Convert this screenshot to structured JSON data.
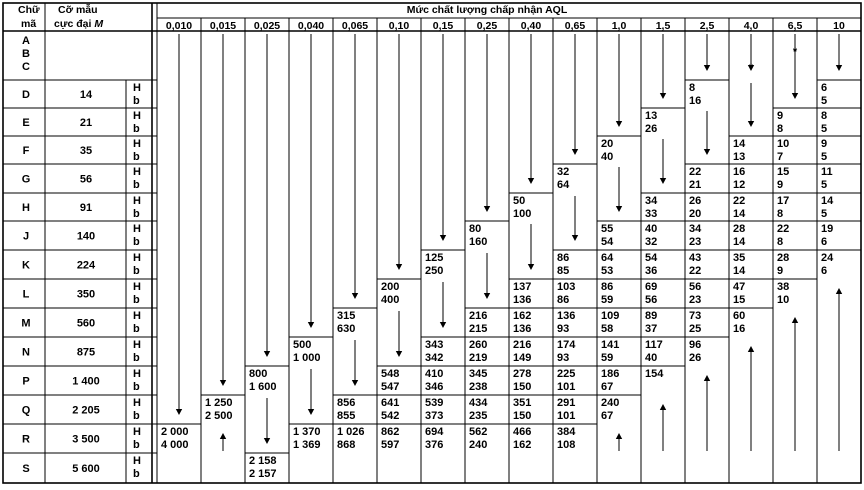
{
  "header": {
    "code_label_1": "Chữ",
    "code_label_2": "mã",
    "size_label_1": "Cỡ mẫu",
    "size_label_2": "cực đại",
    "size_label_var": "M",
    "aql_title": "Mức chất lượng chấp nhận AQL"
  },
  "aql_levels": [
    "0,010",
    "0,015",
    "0,025",
    "0,040",
    "0,065",
    "0,10",
    "0,15",
    "0,25",
    "0,40",
    "0,65",
    "1,0",
    "1,5",
    "2,5",
    "4,0",
    "6,5",
    "10"
  ],
  "row_H": "H",
  "row_b": "b",
  "rows": [
    {
      "codes": [
        "A",
        "B",
        "C"
      ],
      "size": ""
    },
    {
      "codes": [
        "D"
      ],
      "size": "14"
    },
    {
      "codes": [
        "E"
      ],
      "size": "21"
    },
    {
      "codes": [
        "F"
      ],
      "size": "35"
    },
    {
      "codes": [
        "G"
      ],
      "size": "56"
    },
    {
      "codes": [
        "H"
      ],
      "size": "91"
    },
    {
      "codes": [
        "J"
      ],
      "size": "140"
    },
    {
      "codes": [
        "K"
      ],
      "size": "224"
    },
    {
      "codes": [
        "L"
      ],
      "size": "350"
    },
    {
      "codes": [
        "M"
      ],
      "size": "560"
    },
    {
      "codes": [
        "N"
      ],
      "size": "875"
    },
    {
      "codes": [
        "P"
      ],
      "size": "1 400"
    },
    {
      "codes": [
        "Q"
      ],
      "size": "2 205"
    },
    {
      "codes": [
        "R"
      ],
      "size": "3 500"
    },
    {
      "codes": [
        "S"
      ],
      "size": "5 600"
    }
  ],
  "cells": [
    {
      "r": 13,
      "c": 0,
      "H": "2 000",
      "b": "4 000"
    },
    {
      "r": 12,
      "c": 1,
      "H": "1 250",
      "b": "2 500"
    },
    {
      "r": 11,
      "c": 2,
      "H": "800",
      "b": "1 600"
    },
    {
      "r": 14,
      "c": 2,
      "H": "2 158",
      "b": "2 157"
    },
    {
      "r": 10,
      "c": 3,
      "H": "500",
      "b": "1 000"
    },
    {
      "r": 13,
      "c": 3,
      "H": "1 370",
      "b": "1 369"
    },
    {
      "r": 9,
      "c": 4,
      "H": "315",
      "b": "630"
    },
    {
      "r": 12,
      "c": 4,
      "H": "856",
      "b": "855"
    },
    {
      "r": 13,
      "c": 4,
      "H": "1 026",
      "b": "868"
    },
    {
      "r": 8,
      "c": 5,
      "H": "200",
      "b": "400"
    },
    {
      "r": 11,
      "c": 5,
      "H": "548",
      "b": "547"
    },
    {
      "r": 12,
      "c": 5,
      "H": "641",
      "b": "542"
    },
    {
      "r": 13,
      "c": 5,
      "H": "862",
      "b": "597"
    },
    {
      "r": 7,
      "c": 6,
      "H": "125",
      "b": "250"
    },
    {
      "r": 10,
      "c": 6,
      "H": "343",
      "b": "342"
    },
    {
      "r": 11,
      "c": 6,
      "H": "410",
      "b": "346"
    },
    {
      "r": 12,
      "c": 6,
      "H": "539",
      "b": "373"
    },
    {
      "r": 13,
      "c": 6,
      "H": "694",
      "b": "376"
    },
    {
      "r": 6,
      "c": 7,
      "H": "80",
      "b": "160"
    },
    {
      "r": 9,
      "c": 7,
      "H": "216",
      "b": "215"
    },
    {
      "r": 10,
      "c": 7,
      "H": "260",
      "b": "219"
    },
    {
      "r": 11,
      "c": 7,
      "H": "345",
      "b": "238"
    },
    {
      "r": 12,
      "c": 7,
      "H": "434",
      "b": "235"
    },
    {
      "r": 13,
      "c": 7,
      "H": "562",
      "b": "240"
    },
    {
      "r": 5,
      "c": 8,
      "H": "50",
      "b": "100"
    },
    {
      "r": 8,
      "c": 8,
      "H": "137",
      "b": "136"
    },
    {
      "r": 9,
      "c": 8,
      "H": "162",
      "b": "136"
    },
    {
      "r": 10,
      "c": 8,
      "H": "216",
      "b": "149"
    },
    {
      "r": 11,
      "c": 8,
      "H": "278",
      "b": "150"
    },
    {
      "r": 12,
      "c": 8,
      "H": "351",
      "b": "150"
    },
    {
      "r": 13,
      "c": 8,
      "H": "466",
      "b": "162"
    },
    {
      "r": 4,
      "c": 9,
      "H": "32",
      "b": "64"
    },
    {
      "r": 7,
      "c": 9,
      "H": "86",
      "b": "85"
    },
    {
      "r": 8,
      "c": 9,
      "H": "103",
      "b": "86"
    },
    {
      "r": 9,
      "c": 9,
      "H": "136",
      "b": "93"
    },
    {
      "r": 10,
      "c": 9,
      "H": "174",
      "b": "93"
    },
    {
      "r": 11,
      "c": 9,
      "H": "225",
      "b": "101"
    },
    {
      "r": 12,
      "c": 9,
      "H": "291",
      "b": "101"
    },
    {
      "r": 13,
      "c": 9,
      "H": "384",
      "b": "108"
    },
    {
      "r": 3,
      "c": 10,
      "H": "20",
      "b": "40"
    },
    {
      "r": 6,
      "c": 10,
      "H": "55",
      "b": "54"
    },
    {
      "r": 7,
      "c": 10,
      "H": "64",
      "b": "53"
    },
    {
      "r": 8,
      "c": 10,
      "H": "86",
      "b": "59"
    },
    {
      "r": 9,
      "c": 10,
      "H": "109",
      "b": "58"
    },
    {
      "r": 10,
      "c": 10,
      "H": "141",
      "b": "59"
    },
    {
      "r": 11,
      "c": 10,
      "H": "186",
      "b": "67"
    },
    {
      "r": 12,
      "c": 10,
      "H": "240",
      "b": "67"
    },
    {
      "r": 2,
      "c": 11,
      "H": "13",
      "b": "26"
    },
    {
      "r": 5,
      "c": 11,
      "H": "34",
      "b": "33"
    },
    {
      "r": 6,
      "c": 11,
      "H": "40",
      "b": "32"
    },
    {
      "r": 7,
      "c": 11,
      "H": "54",
      "b": "36"
    },
    {
      "r": 8,
      "c": 11,
      "H": "69",
      "b": "56"
    },
    {
      "r": 9,
      "c": 11,
      "H": "89",
      "b": "37"
    },
    {
      "r": 10,
      "c": 11,
      "H": "117",
      "b": "40"
    },
    {
      "r": 11,
      "c": 11,
      "H": "154",
      "b": ""
    },
    {
      "r": 1,
      "c": 12,
      "H": "8",
      "b": "16"
    },
    {
      "r": 4,
      "c": 12,
      "H": "22",
      "b": "21"
    },
    {
      "r": 5,
      "c": 12,
      "H": "26",
      "b": "20"
    },
    {
      "r": 6,
      "c": 12,
      "H": "34",
      "b": "23"
    },
    {
      "r": 7,
      "c": 12,
      "H": "43",
      "b": "22"
    },
    {
      "r": 8,
      "c": 12,
      "H": "56",
      "b": "23"
    },
    {
      "r": 9,
      "c": 12,
      "H": "73",
      "b": "25"
    },
    {
      "r": 10,
      "c": 12,
      "H": "96",
      "b": "26"
    },
    {
      "r": 3,
      "c": 13,
      "H": "14",
      "b": "13"
    },
    {
      "r": 4,
      "c": 13,
      "H": "16",
      "b": "12"
    },
    {
      "r": 5,
      "c": 13,
      "H": "22",
      "b": "14"
    },
    {
      "r": 6,
      "c": 13,
      "H": "28",
      "b": "14"
    },
    {
      "r": 7,
      "c": 13,
      "H": "35",
      "b": "14"
    },
    {
      "r": 8,
      "c": 13,
      "H": "47",
      "b": "15"
    },
    {
      "r": 9,
      "c": 13,
      "H": "60",
      "b": "16"
    },
    {
      "r": 2,
      "c": 14,
      "H": "9",
      "b": "8"
    },
    {
      "r": 3,
      "c": 14,
      "H": "10",
      "b": "7"
    },
    {
      "r": 4,
      "c": 14,
      "H": "15",
      "b": "9"
    },
    {
      "r": 5,
      "c": 14,
      "H": "17",
      "b": "8"
    },
    {
      "r": 6,
      "c": 14,
      "H": "22",
      "b": "8"
    },
    {
      "r": 7,
      "c": 14,
      "H": "28",
      "b": "9"
    },
    {
      "r": 8,
      "c": 14,
      "H": "38",
      "b": "10"
    },
    {
      "r": 1,
      "c": 15,
      "H": "6",
      "b": "5"
    },
    {
      "r": 2,
      "c": 15,
      "H": "8",
      "b": "5"
    },
    {
      "r": 3,
      "c": 15,
      "H": "9",
      "b": "5"
    },
    {
      "r": 4,
      "c": 15,
      "H": "11",
      "b": "5"
    },
    {
      "r": 5,
      "c": 15,
      "H": "14",
      "b": "5"
    },
    {
      "r": 6,
      "c": 15,
      "H": "19",
      "b": "6"
    },
    {
      "r": 7,
      "c": 15,
      "H": "24",
      "b": "6"
    }
  ],
  "down_arrows": [
    {
      "c": 0,
      "r1": 0,
      "r2": 12
    },
    {
      "c": 1,
      "r1": 0,
      "r2": 11
    },
    {
      "c": 2,
      "r1": 0,
      "r2": 10
    },
    {
      "c": 2,
      "r1": 12,
      "r2": 13
    },
    {
      "c": 3,
      "r1": 0,
      "r2": 9
    },
    {
      "c": 3,
      "r1": 11,
      "r2": 12
    },
    {
      "c": 4,
      "r1": 0,
      "r2": 8
    },
    {
      "c": 4,
      "r1": 10,
      "r2": 11
    },
    {
      "c": 5,
      "r1": 0,
      "r2": 7
    },
    {
      "c": 5,
      "r1": 9,
      "r2": 10
    },
    {
      "c": 6,
      "r1": 0,
      "r2": 6
    },
    {
      "c": 6,
      "r1": 8,
      "r2": 9
    },
    {
      "c": 7,
      "r1": 0,
      "r2": 5
    },
    {
      "c": 7,
      "r1": 7,
      "r2": 8
    },
    {
      "c": 8,
      "r1": 0,
      "r2": 4
    },
    {
      "c": 8,
      "r1": 6,
      "r2": 7
    },
    {
      "c": 9,
      "r1": 0,
      "r2": 3
    },
    {
      "c": 9,
      "r1": 5,
      "r2": 6
    },
    {
      "c": 10,
      "r1": 0,
      "r2": 2
    },
    {
      "c": 10,
      "r1": 4,
      "r2": 5
    },
    {
      "c": 11,
      "r1": 0,
      "r2": 1
    },
    {
      "c": 11,
      "r1": 3,
      "r2": 4
    },
    {
      "c": 12,
      "r1": 0,
      "r2": 0
    },
    {
      "c": 12,
      "r1": 2,
      "r2": 3
    },
    {
      "c": 13,
      "r1": 0,
      "r2": 0
    },
    {
      "c": 13,
      "r1": 1,
      "r2": 2
    },
    {
      "c": 14,
      "r1": 0,
      "r2": 1
    },
    {
      "c": 15,
      "r1": 0,
      "r2": 0
    }
  ],
  "up_arrows": [
    {
      "c": 1,
      "r1": 13,
      "r2": 13
    },
    {
      "c": 10,
      "r1": 13,
      "r2": 13
    },
    {
      "c": 11,
      "r1": 12,
      "r2": 13
    },
    {
      "c": 12,
      "r1": 11,
      "r2": 13
    },
    {
      "c": 13,
      "r1": 10,
      "r2": 13
    },
    {
      "c": 14,
      "r1": 9,
      "r2": 13
    },
    {
      "c": 15,
      "r1": 8,
      "r2": 13
    }
  ],
  "star_cells": [
    {
      "c": 13,
      "r": 0
    },
    {
      "c": 14,
      "r": 0
    }
  ],
  "star_symbol": "*"
}
